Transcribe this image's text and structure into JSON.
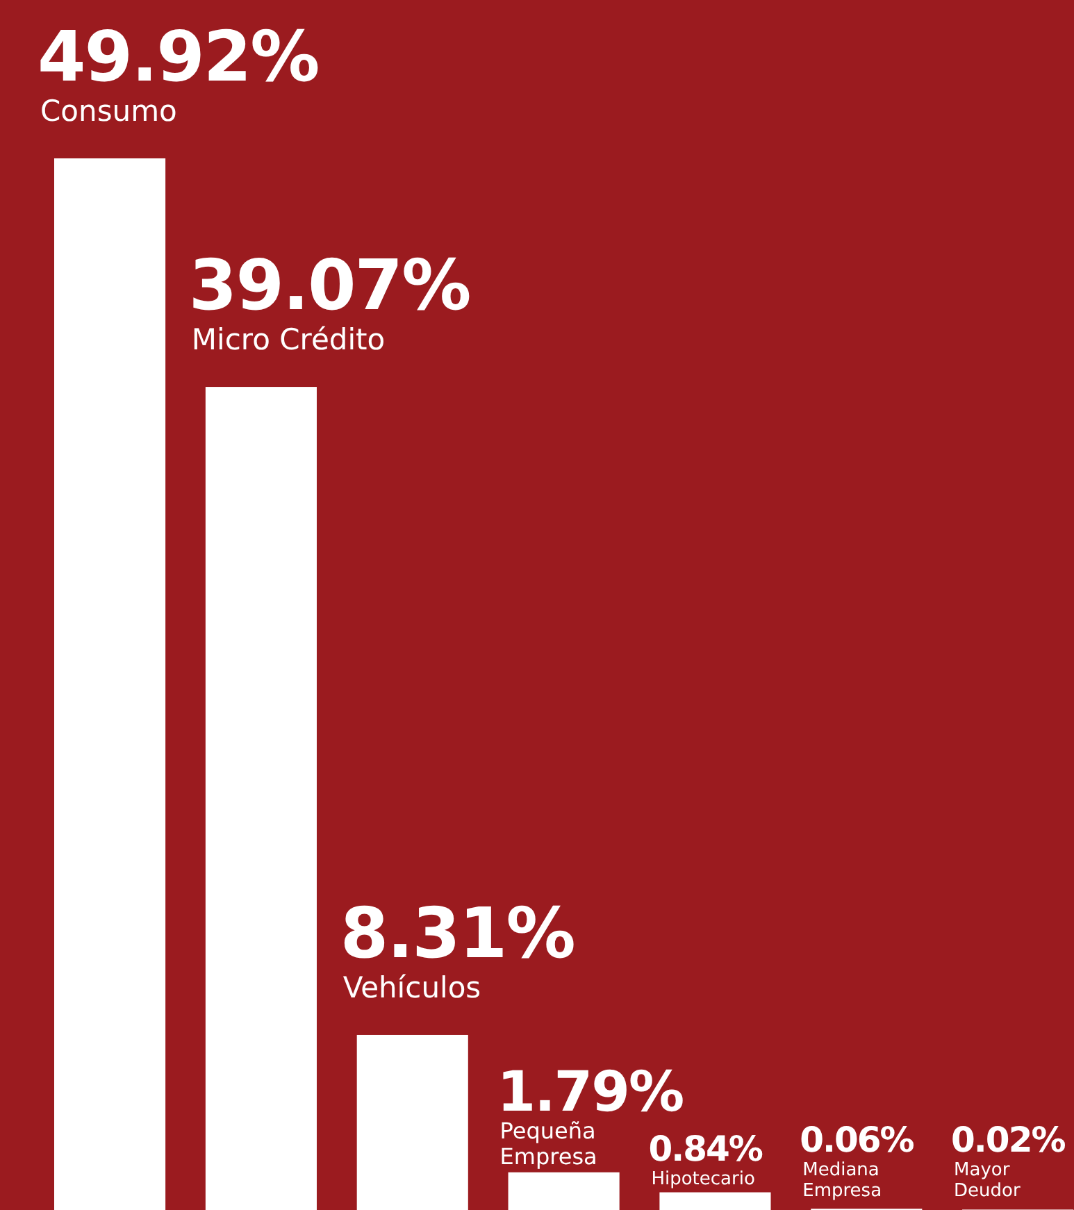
{
  "chart_data": {
    "type": "bar",
    "categories": [
      "Consumo",
      "Micro Crédito",
      "Vehículos",
      "Pequeña Empresa",
      "Hipotecario",
      "Mediana Empresa",
      "Mayor Deudor"
    ],
    "values": [
      49.92,
      39.07,
      8.31,
      1.79,
      0.84,
      0.06,
      0.02
    ],
    "value_labels": [
      "49.92%",
      "39.07%",
      "8.31%",
      "1.79%",
      "0.84%",
      "0.06%",
      "0.02%"
    ],
    "color": "#ffffff"
  }
}
